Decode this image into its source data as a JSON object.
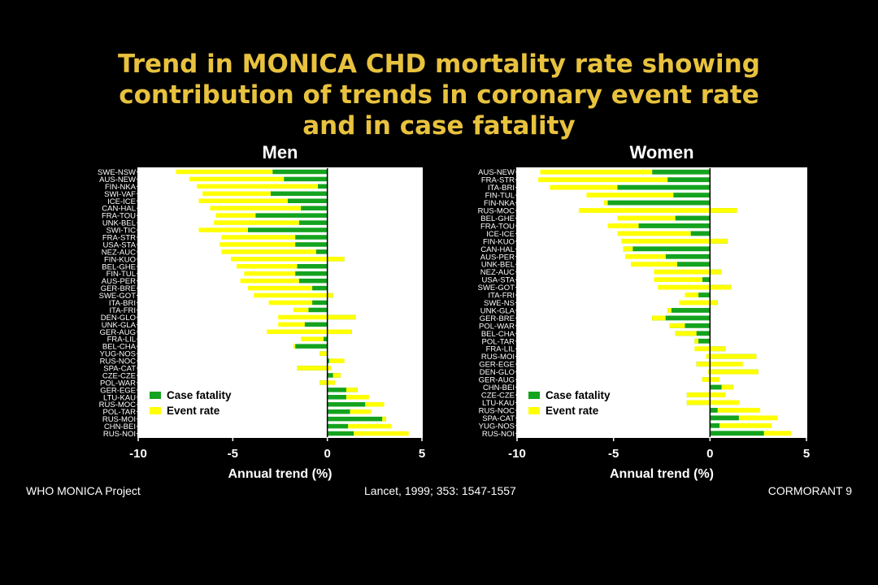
{
  "colors": {
    "background": "#000000",
    "title": "#e8c23e",
    "case_fatality": "#14a31e",
    "event_rate": "#ffff00",
    "text": "#ffffff"
  },
  "title_lines": [
    "Trend in MONICA CHD mortality rate showing",
    "contribution of trends in coronary event rate",
    "and  in case fatality"
  ],
  "footer": {
    "left": "WHO MONICA Project",
    "center": "Lancet, 1999; 353: 1547-1557",
    "right": "CORMORANT 9"
  },
  "chart_data": [
    {
      "type": "bar",
      "title": "Men",
      "xlabel": "Annual trend (%)",
      "xlim": [
        -10,
        5
      ],
      "xticks": [
        "-10",
        "-5",
        "0",
        "5"
      ],
      "grid": false,
      "legend": [
        "Case fatality",
        "Event rate"
      ],
      "legend_position": "bottom-left",
      "categories": [
        "SWE-NSW",
        "AUS-NEW",
        "FIN-NKA",
        "SWI-VAF",
        "ICE-ICE",
        "CAN-HAL",
        "FRA-TOU",
        "UNK-BEL",
        "SWI-TIC",
        "FRA-STR",
        "USA-STA",
        "NEZ-AUC",
        "FIN-KUO",
        "BEL-GHE",
        "FIN-TUL",
        "AUS-PER",
        "GER-BRE",
        "SWE-GOT",
        "ITA-BRI",
        "ITA-FRI",
        "DEN-GLO",
        "UNK-GLA",
        "GER-AUG",
        "FRA-LIL",
        "BEL-CHA",
        "YUG-NOS",
        "RUS-NOC",
        "SPA-CAT",
        "CZE-CZE",
        "POL-WAR",
        "GER-EGE",
        "LTU-KAU",
        "RUS-MOC",
        "POL-TAR",
        "RUS-MOI",
        "CHN-BEI",
        "RUS-NOI"
      ],
      "series": [
        {
          "name": "Case fatality",
          "values": [
            -2.9,
            -2.3,
            -0.5,
            -3.0,
            -2.1,
            -1.4,
            -3.8,
            -1.5,
            -4.2,
            -1.7,
            -1.7,
            -0.6,
            0.9,
            -1.6,
            -1.7,
            -1.5,
            -0.8,
            0.3,
            -0.8,
            -1.0,
            1.5,
            -1.2,
            1.3,
            -0.2,
            -1.7,
            -0.4,
            0.1,
            -1.6,
            0.7,
            -0.4,
            1.6,
            1.0,
            3.0,
            1.2,
            3.1,
            1.1,
            1.4
          ]
        },
        {
          "name": "Event rate",
          "values": [
            -5.1,
            -5.0,
            -6.4,
            -3.6,
            -4.7,
            -4.8,
            -2.1,
            -4.5,
            -2.6,
            -3.9,
            -4.0,
            -5.0,
            -6.0,
            -3.2,
            -2.7,
            -3.1,
            -3.4,
            -4.2,
            -2.3,
            -0.8,
            -4.1,
            -1.4,
            -4.5,
            -1.2,
            -0.1,
            0.4,
            0.8,
            1.8,
            -0.4,
            0.8,
            -0.6,
            1.2,
            -1.0,
            1.1,
            -0.2,
            2.3,
            2.9
          ]
        }
      ]
    },
    {
      "type": "bar",
      "title": "Women",
      "xlabel": "Annual trend (%)",
      "xlim": [
        -10,
        5
      ],
      "xticks": [
        "-10",
        "-5",
        "0",
        "5"
      ],
      "grid": false,
      "legend": [
        "Case fatality",
        "Event rate"
      ],
      "legend_position": "bottom-left",
      "categories": [
        "AUS-NEW",
        "FRA-STR",
        "ITA-BRI",
        "FIN-TUL",
        "FIN-NKA",
        "RUS-MOC",
        "BEL-GHE",
        "FRA-TOU",
        "ICE-ICE",
        "FIN-KUO",
        "CAN-HAL",
        "AUS-PER",
        "UNK-BEL",
        "NEZ-AUC",
        "USA-STA",
        "SWE-GOT",
        "ITA-FRI",
        "SWE-NS",
        "UNK-GLA",
        "GER-BRE",
        "POL-WAR",
        "BEL-CHA",
        "POL-TAR",
        "FRA-LIL",
        "RUS-MOI",
        "GER-EGE",
        "DEN-GLO",
        "GER-AUG",
        "CHN-BEI",
        "CZE-CZE",
        "LTU-KAU",
        "RUS-NOC",
        "SPA-CAT",
        "YUG-NOS",
        "RUS-NOI"
      ],
      "series": [
        {
          "name": "Case fatality",
          "values": [
            -3.0,
            -2.2,
            -4.8,
            -1.9,
            -5.3,
            1.4,
            -1.8,
            -3.7,
            -1.0,
            0.9,
            -4.5,
            -2.3,
            -1.7,
            0.6,
            -0.4,
            1.1,
            -0.6,
            0.4,
            -2.2,
            -3.0,
            -2.1,
            -1.8,
            -0.8,
            0.8,
            2.4,
            -0.7,
            2.5,
            -0.4,
            1.2,
            -1.2,
            -1.2,
            0.4,
            1.5,
            0.5,
            2.8
          ]
        },
        {
          "name": "Event rate",
          "values": [
            -5.8,
            -6.7,
            -3.5,
            -4.5,
            -0.2,
            -8.2,
            -3.0,
            -1.6,
            -3.8,
            -5.5,
            0.5,
            -2.1,
            -2.4,
            -3.5,
            -2.5,
            -3.8,
            -0.7,
            -2.0,
            0.2,
            0.7,
            0.8,
            1.1,
            0.2,
            -1.6,
            -2.6,
            2.4,
            -2.6,
            0.9,
            -0.6,
            2.0,
            2.7,
            2.2,
            2.0,
            2.7,
            1.4
          ]
        }
      ]
    }
  ]
}
